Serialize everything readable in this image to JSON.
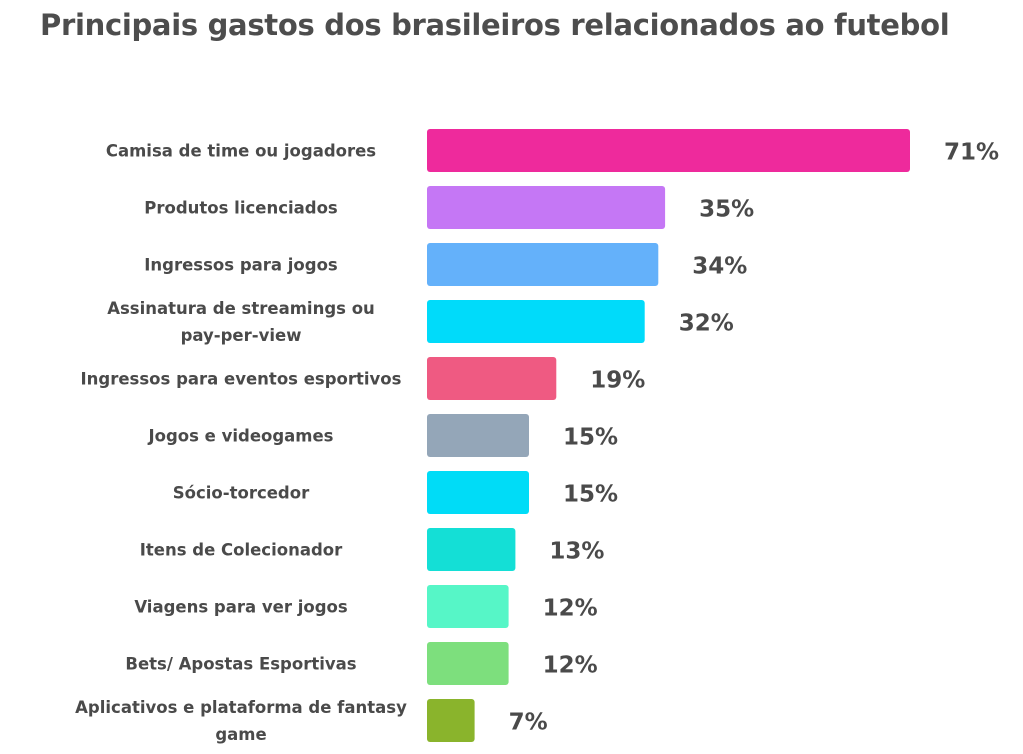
{
  "chart_data": {
    "type": "bar",
    "orientation": "horizontal",
    "title": "Principais gastos dos brasileiros relacionados ao futebol",
    "categories": [
      "Camisa de time ou jogadores",
      "Produtos licenciados",
      "Ingressos para jogos",
      "Assinatura de streamings ou pay-per-view",
      "Ingressos para eventos esportivos",
      "Jogos e videogames",
      "Sócio-torcedor",
      "Itens de Colecionador",
      "Viagens para ver jogos",
      "Bets/ Apostas Esportivas",
      "Aplicativos e plataforma de fantasy game"
    ],
    "category_lines": [
      [
        "Camisa de time ou jogadores"
      ],
      [
        "Produtos licenciados"
      ],
      [
        "Ingressos para jogos"
      ],
      [
        "Assinatura de streamings ou",
        "pay-per-view"
      ],
      [
        "Ingressos para eventos esportivos"
      ],
      [
        "Jogos e videogames"
      ],
      [
        "Sócio-torcedor"
      ],
      [
        "Itens de Colecionador"
      ],
      [
        "Viagens para ver jogos"
      ],
      [
        "Bets/ Apostas Esportivas"
      ],
      [
        "Aplicativos e plataforma de fantasy",
        "game"
      ]
    ],
    "values": [
      71,
      35,
      34,
      32,
      19,
      15,
      15,
      13,
      12,
      12,
      7
    ],
    "value_labels": [
      "71%",
      "35%",
      "34%",
      "32%",
      "19%",
      "15%",
      "15%",
      "13%",
      "12%",
      "12%",
      "7%"
    ],
    "unit": "%",
    "xlim": [
      0,
      71
    ],
    "colors": [
      "#ee2a9c",
      "#c577f5",
      "#64b1fa",
      "#00dbfa",
      "#ef5a82",
      "#94a6b8",
      "#00dcf7",
      "#14dfd6",
      "#56f6c7",
      "#7ddf7d",
      "#8ab42c"
    ],
    "grid": false,
    "legend": "none"
  }
}
